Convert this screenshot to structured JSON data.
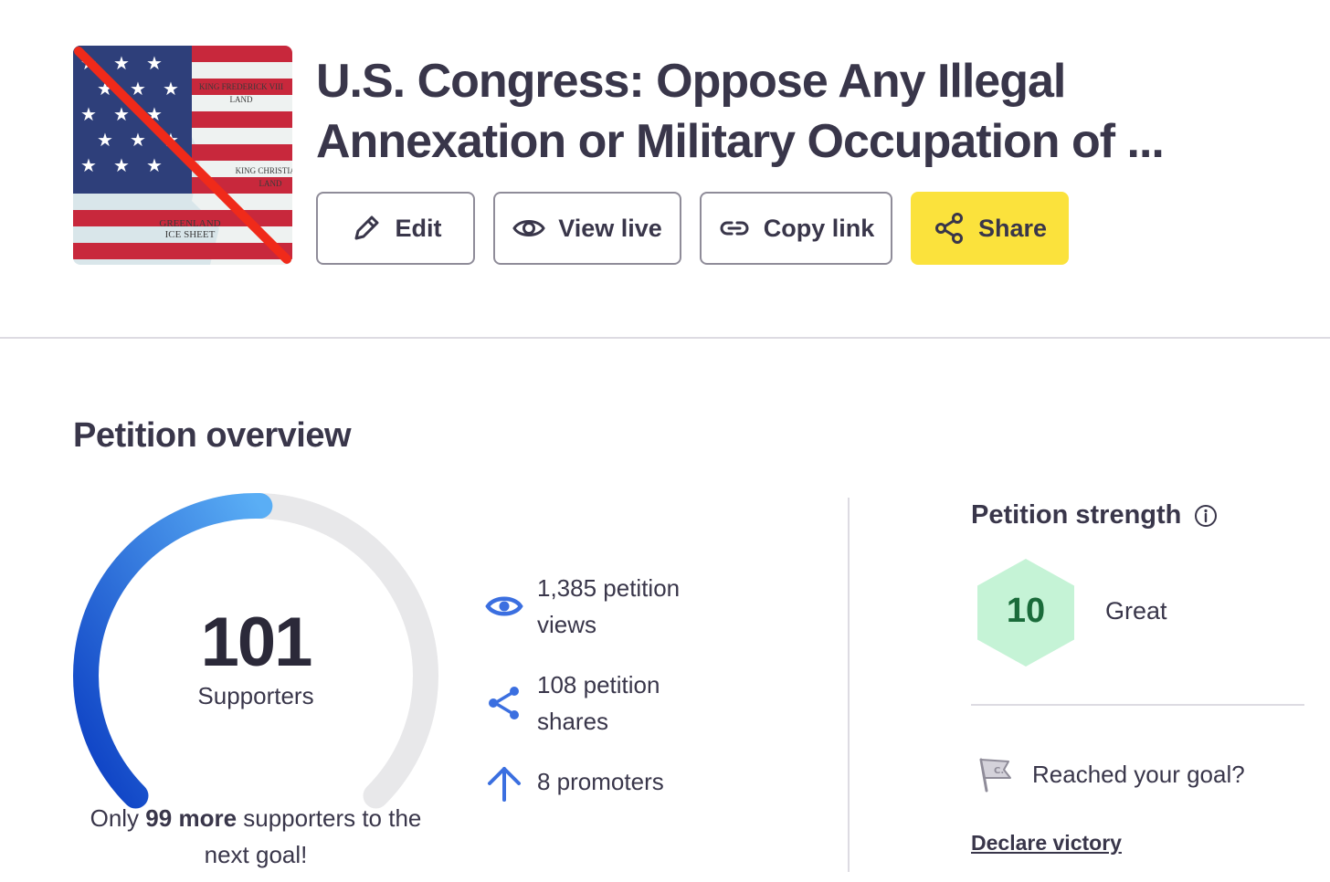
{
  "petition": {
    "title_line1": "U.S. Congress: Oppose Any Illegal",
    "title_line2": "Annexation or Military Occupation of ...",
    "image_labels": {
      "greenland": "GREENLAND",
      "ice_sheet": "ICE SHEET",
      "king_frederick": "KING FREDERICK VIII",
      "king_christian": "KING CHRISTIAN",
      "land": "LAND"
    }
  },
  "actions": {
    "edit": "Edit",
    "view_live": "View live",
    "copy_link": "Copy link",
    "share": "Share"
  },
  "overview": {
    "title": "Petition overview",
    "supporters": {
      "count": "101",
      "label": "Supporters",
      "progress": 0.505
    },
    "goal_message": {
      "prefix": "Only",
      "number": "99",
      "more": "more",
      "suffix": "supporters to the next goal!"
    },
    "stats": [
      {
        "icon": "eye-icon",
        "text": "1,385 petition views"
      },
      {
        "icon": "share-icon",
        "text": "108 petition shares"
      },
      {
        "icon": "arrow-up-icon",
        "text": "8 promoters"
      }
    ]
  },
  "strength": {
    "title": "Petition strength",
    "score": "10",
    "rating": "Great",
    "goal_question": "Reached your goal?",
    "declare_victory": "Declare victory"
  },
  "colors": {
    "text": "#39364a",
    "share_button": "#fbe23c",
    "gauge_start": "#0a3cc2",
    "gauge_end": "#5aaef5",
    "gauge_track": "#e8e8ea",
    "stat_icon": "#3b6fe0",
    "hexagon": "#c5f3d6",
    "score_text": "#1a6b3a"
  }
}
